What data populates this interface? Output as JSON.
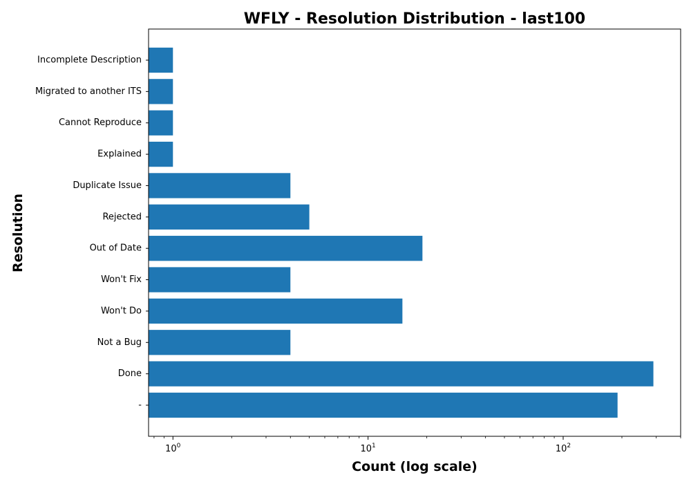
{
  "chart_data": {
    "type": "bar",
    "orientation": "horizontal",
    "title": "WFLY - Resolution Distribution - last100",
    "xlabel": "Count (log scale)",
    "ylabel": "Resolution",
    "x_scale": "log",
    "xlim": [
      0.75,
      400
    ],
    "x_ticks": [
      1,
      10,
      100
    ],
    "categories": [
      "-",
      "Done",
      "Not a Bug",
      "Won't Do",
      "Won't Fix",
      "Out of Date",
      "Rejected",
      "Duplicate Issue",
      "Explained",
      "Cannot Reproduce",
      "Migrated to another ITS",
      "Incomplete Description"
    ],
    "values": [
      190,
      290,
      4,
      15,
      4,
      19,
      5,
      4,
      1,
      1,
      1,
      1
    ],
    "bar_color": "#1f77b4",
    "grid": false,
    "legend": false
  }
}
